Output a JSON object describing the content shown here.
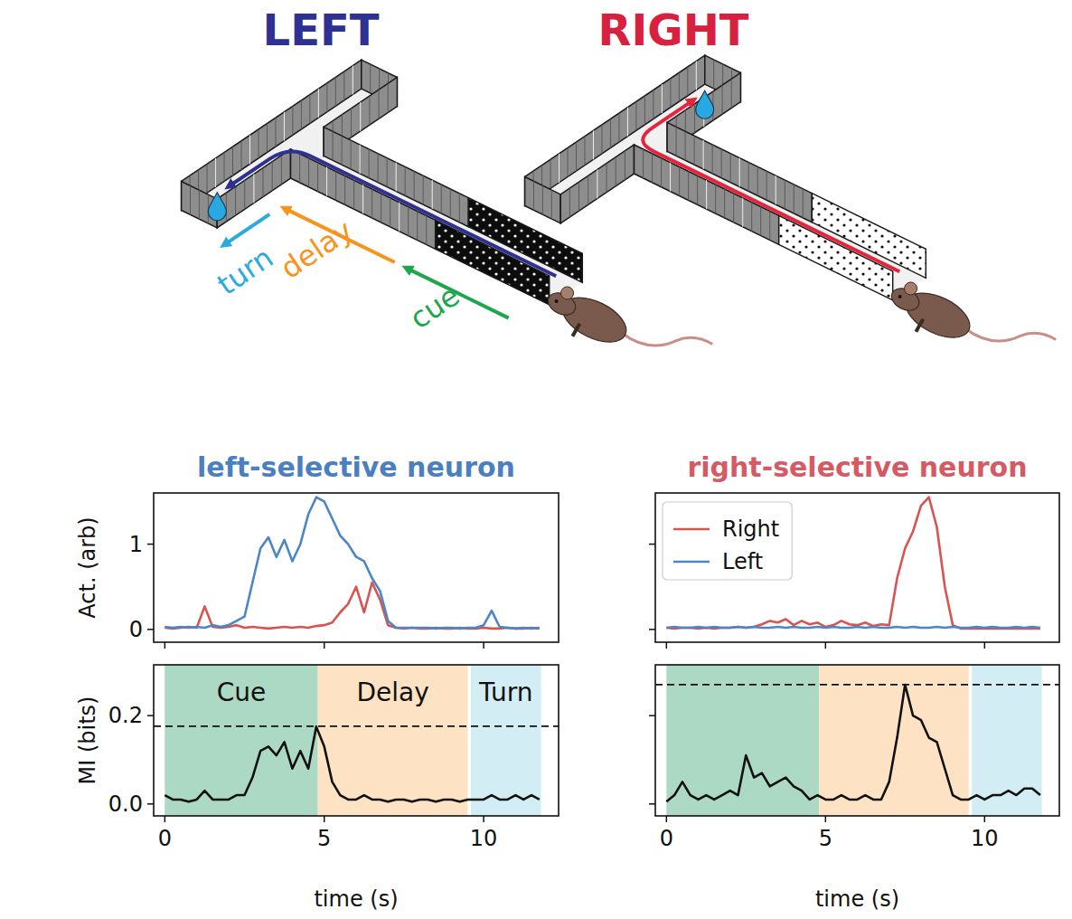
{
  "diagram": {
    "left_label": "LEFT",
    "right_label": "RIGHT",
    "phase_arrows": [
      "cue",
      "delay",
      "turn"
    ]
  },
  "chart_data": [
    {
      "type": "line",
      "title": "left-selective neuron",
      "ylabel": "Act. (arb)",
      "x": [
        0,
        0.25,
        0.5,
        0.75,
        1,
        1.25,
        1.5,
        1.75,
        2,
        2.25,
        2.5,
        2.75,
        3,
        3.25,
        3.5,
        3.75,
        4,
        4.25,
        4.5,
        4.75,
        5,
        5.25,
        5.5,
        5.75,
        6,
        6.25,
        6.5,
        6.75,
        7,
        7.25,
        7.5,
        7.75,
        8,
        8.25,
        8.5,
        8.75,
        9,
        9.25,
        9.5,
        9.75,
        10,
        10.25,
        10.5,
        10.75,
        11,
        11.25,
        11.5,
        11.75
      ],
      "series": [
        {
          "name": "Right",
          "color": "#d9534f",
          "values": [
            0.02,
            0.01,
            0.02,
            0.03,
            0.02,
            0.27,
            0.03,
            0.02,
            0.03,
            0.05,
            0.02,
            0.03,
            0.02,
            0.01,
            0.02,
            0.03,
            0.02,
            0.03,
            0.02,
            0.04,
            0.05,
            0.08,
            0.2,
            0.3,
            0.5,
            0.2,
            0.55,
            0.35,
            0.05,
            0.02,
            0.01,
            0.02,
            0.01,
            0.01,
            0.02,
            0.01,
            0.01,
            0.02,
            0.01,
            0.01,
            0.02,
            0.01,
            0.01,
            0.02,
            0.01,
            0.01,
            0.02,
            0.01
          ]
        },
        {
          "name": "Left",
          "color": "#4a86c8",
          "values": [
            0.03,
            0.02,
            0.03,
            0.02,
            0.03,
            0.02,
            0.05,
            0.03,
            0.05,
            0.1,
            0.15,
            0.55,
            0.95,
            1.08,
            0.85,
            1.05,
            0.8,
            1.0,
            1.35,
            1.55,
            1.5,
            1.3,
            1.1,
            1.0,
            0.85,
            0.8,
            0.6,
            0.45,
            0.1,
            0.02,
            0.02,
            0.02,
            0.02,
            0.02,
            0.01,
            0.02,
            0.02,
            0.01,
            0.02,
            0.02,
            0.05,
            0.22,
            0.03,
            0.02,
            0.01,
            0.02,
            0.01,
            0.02
          ]
        }
      ],
      "xlim": [
        -0.35,
        12.35
      ],
      "ylim": [
        -0.15,
        1.6
      ],
      "xticks": [
        0,
        5,
        10
      ],
      "yticks": [
        0,
        1
      ],
      "tick_labels": "y"
    },
    {
      "type": "line",
      "title": "right-selective neuron",
      "x": [
        0,
        0.25,
        0.5,
        0.75,
        1,
        1.25,
        1.5,
        1.75,
        2,
        2.25,
        2.5,
        2.75,
        3,
        3.25,
        3.5,
        3.75,
        4,
        4.25,
        4.5,
        4.75,
        5,
        5.25,
        5.5,
        5.75,
        6,
        6.25,
        6.5,
        6.75,
        7,
        7.25,
        7.5,
        7.75,
        8,
        8.25,
        8.5,
        8.75,
        9,
        9.25,
        9.5,
        9.75,
        10,
        10.25,
        10.5,
        10.75,
        11,
        11.25,
        11.5,
        11.75
      ],
      "series": [
        {
          "name": "Right",
          "color": "#d9534f",
          "values": [
            0.02,
            0.01,
            0.02,
            0.02,
            0.01,
            0.02,
            0.01,
            0.02,
            0.02,
            0.03,
            0.02,
            0.03,
            0.06,
            0.1,
            0.08,
            0.12,
            0.05,
            0.1,
            0.06,
            0.08,
            0.03,
            0.05,
            0.1,
            0.06,
            0.05,
            0.08,
            0.04,
            0.06,
            0.05,
            0.6,
            0.95,
            1.15,
            1.45,
            1.55,
            1.2,
            0.5,
            0.05,
            0.01,
            0.01,
            0.01,
            0.01,
            0.01,
            0.01,
            0.01,
            0.01,
            0.01,
            0.01,
            0.01
          ]
        },
        {
          "name": "Left",
          "color": "#4a86c8",
          "values": [
            0.02,
            0.03,
            0.02,
            0.02,
            0.03,
            0.02,
            0.03,
            0.02,
            0.02,
            0.03,
            0.02,
            0.03,
            0.02,
            0.02,
            0.03,
            0.02,
            0.03,
            0.02,
            0.02,
            0.03,
            0.02,
            0.03,
            0.02,
            0.02,
            0.03,
            0.02,
            0.03,
            0.02,
            0.02,
            0.03,
            0.02,
            0.03,
            0.02,
            0.02,
            0.03,
            0.02,
            0.03,
            0.02,
            0.02,
            0.03,
            0.02,
            0.03,
            0.02,
            0.02,
            0.03,
            0.02,
            0.03,
            0.02
          ]
        }
      ],
      "xlim": [
        -0.35,
        12.35
      ],
      "ylim": [
        -0.15,
        1.6
      ],
      "xticks": [
        0,
        5,
        10
      ],
      "yticks": [
        0,
        1
      ],
      "tick_labels": false,
      "legend": "upper left"
    },
    {
      "type": "line",
      "ylabel": "MI (bits)",
      "xlabel": "time (s)",
      "x": [
        0,
        0.25,
        0.5,
        0.75,
        1,
        1.25,
        1.5,
        1.75,
        2,
        2.25,
        2.5,
        2.75,
        3,
        3.25,
        3.5,
        3.75,
        4,
        4.25,
        4.5,
        4.75,
        5,
        5.25,
        5.5,
        5.75,
        6,
        6.25,
        6.5,
        6.75,
        7,
        7.25,
        7.5,
        7.75,
        8,
        8.25,
        8.5,
        8.75,
        9,
        9.25,
        9.5,
        9.75,
        10,
        10.25,
        10.5,
        10.75,
        11,
        11.25,
        11.5,
        11.75
      ],
      "series": [
        {
          "color": "#111111",
          "values": [
            0.02,
            0.01,
            0.01,
            0.005,
            0.01,
            0.03,
            0.01,
            0.01,
            0.01,
            0.02,
            0.02,
            0.06,
            0.12,
            0.13,
            0.11,
            0.14,
            0.08,
            0.12,
            0.08,
            0.175,
            0.13,
            0.05,
            0.02,
            0.01,
            0.01,
            0.02,
            0.01,
            0.01,
            0.005,
            0.01,
            0.01,
            0.005,
            0.01,
            0.01,
            0.005,
            0.01,
            0.01,
            0.005,
            0.01,
            0.01,
            0.01,
            0.02,
            0.01,
            0.01,
            0.02,
            0.01,
            0.02,
            0.01
          ]
        }
      ],
      "threshold": 0.176,
      "phases": [
        {
          "label": "Cue",
          "start": 0,
          "end": 4.8,
          "color": "#acd9c4"
        },
        {
          "label": "Delay",
          "start": 4.8,
          "end": 9.5,
          "color": "#fde3c3"
        },
        {
          "label": "Turn",
          "start": 9.6,
          "end": 11.8,
          "color": "#d3edf4"
        }
      ],
      "xlim": [
        -0.35,
        12.35
      ],
      "ylim": [
        -0.027,
        0.315
      ],
      "xticks": [
        0,
        5,
        10
      ],
      "yticks": [
        {
          "value": 0,
          "label": "0.0"
        },
        {
          "value": 0.2,
          "label": "0.2"
        }
      ]
    },
    {
      "type": "line",
      "xlabel": "time (s)",
      "x": [
        0,
        0.25,
        0.5,
        0.75,
        1,
        1.25,
        1.5,
        1.75,
        2,
        2.25,
        2.5,
        2.75,
        3,
        3.25,
        3.5,
        3.75,
        4,
        4.25,
        4.5,
        4.75,
        5,
        5.25,
        5.5,
        5.75,
        6,
        6.25,
        6.5,
        6.75,
        7,
        7.25,
        7.5,
        7.75,
        8,
        8.25,
        8.5,
        8.75,
        9,
        9.25,
        9.5,
        9.75,
        10,
        10.25,
        10.5,
        10.75,
        11,
        11.25,
        11.5,
        11.75
      ],
      "series": [
        {
          "color": "#111111",
          "values": [
            0.005,
            0.02,
            0.05,
            0.02,
            0.01,
            0.02,
            0.01,
            0.02,
            0.03,
            0.02,
            0.11,
            0.06,
            0.07,
            0.04,
            0.05,
            0.06,
            0.04,
            0.03,
            0.01,
            0.02,
            0.01,
            0.01,
            0.02,
            0.01,
            0.01,
            0.02,
            0.01,
            0.01,
            0.05,
            0.15,
            0.27,
            0.2,
            0.19,
            0.15,
            0.14,
            0.08,
            0.02,
            0.01,
            0.01,
            0.02,
            0.01,
            0.02,
            0.02,
            0.03,
            0.02,
            0.035,
            0.035,
            0.02
          ]
        }
      ],
      "threshold": 0.27,
      "phases": [
        {
          "start": 0,
          "end": 4.8,
          "color": "#acd9c4"
        },
        {
          "start": 4.8,
          "end": 9.5,
          "color": "#fde3c3"
        },
        {
          "start": 9.6,
          "end": 11.8,
          "color": "#d3edf4"
        }
      ],
      "xlim": [
        -0.35,
        12.35
      ],
      "ylim": [
        -0.027,
        0.315
      ],
      "xticks": [
        0,
        5,
        10
      ],
      "yticks": [
        {
          "value": 0,
          "label": "0.0"
        },
        {
          "value": 0.2,
          "label": "0.2"
        }
      ],
      "tick_labels": "x"
    }
  ]
}
